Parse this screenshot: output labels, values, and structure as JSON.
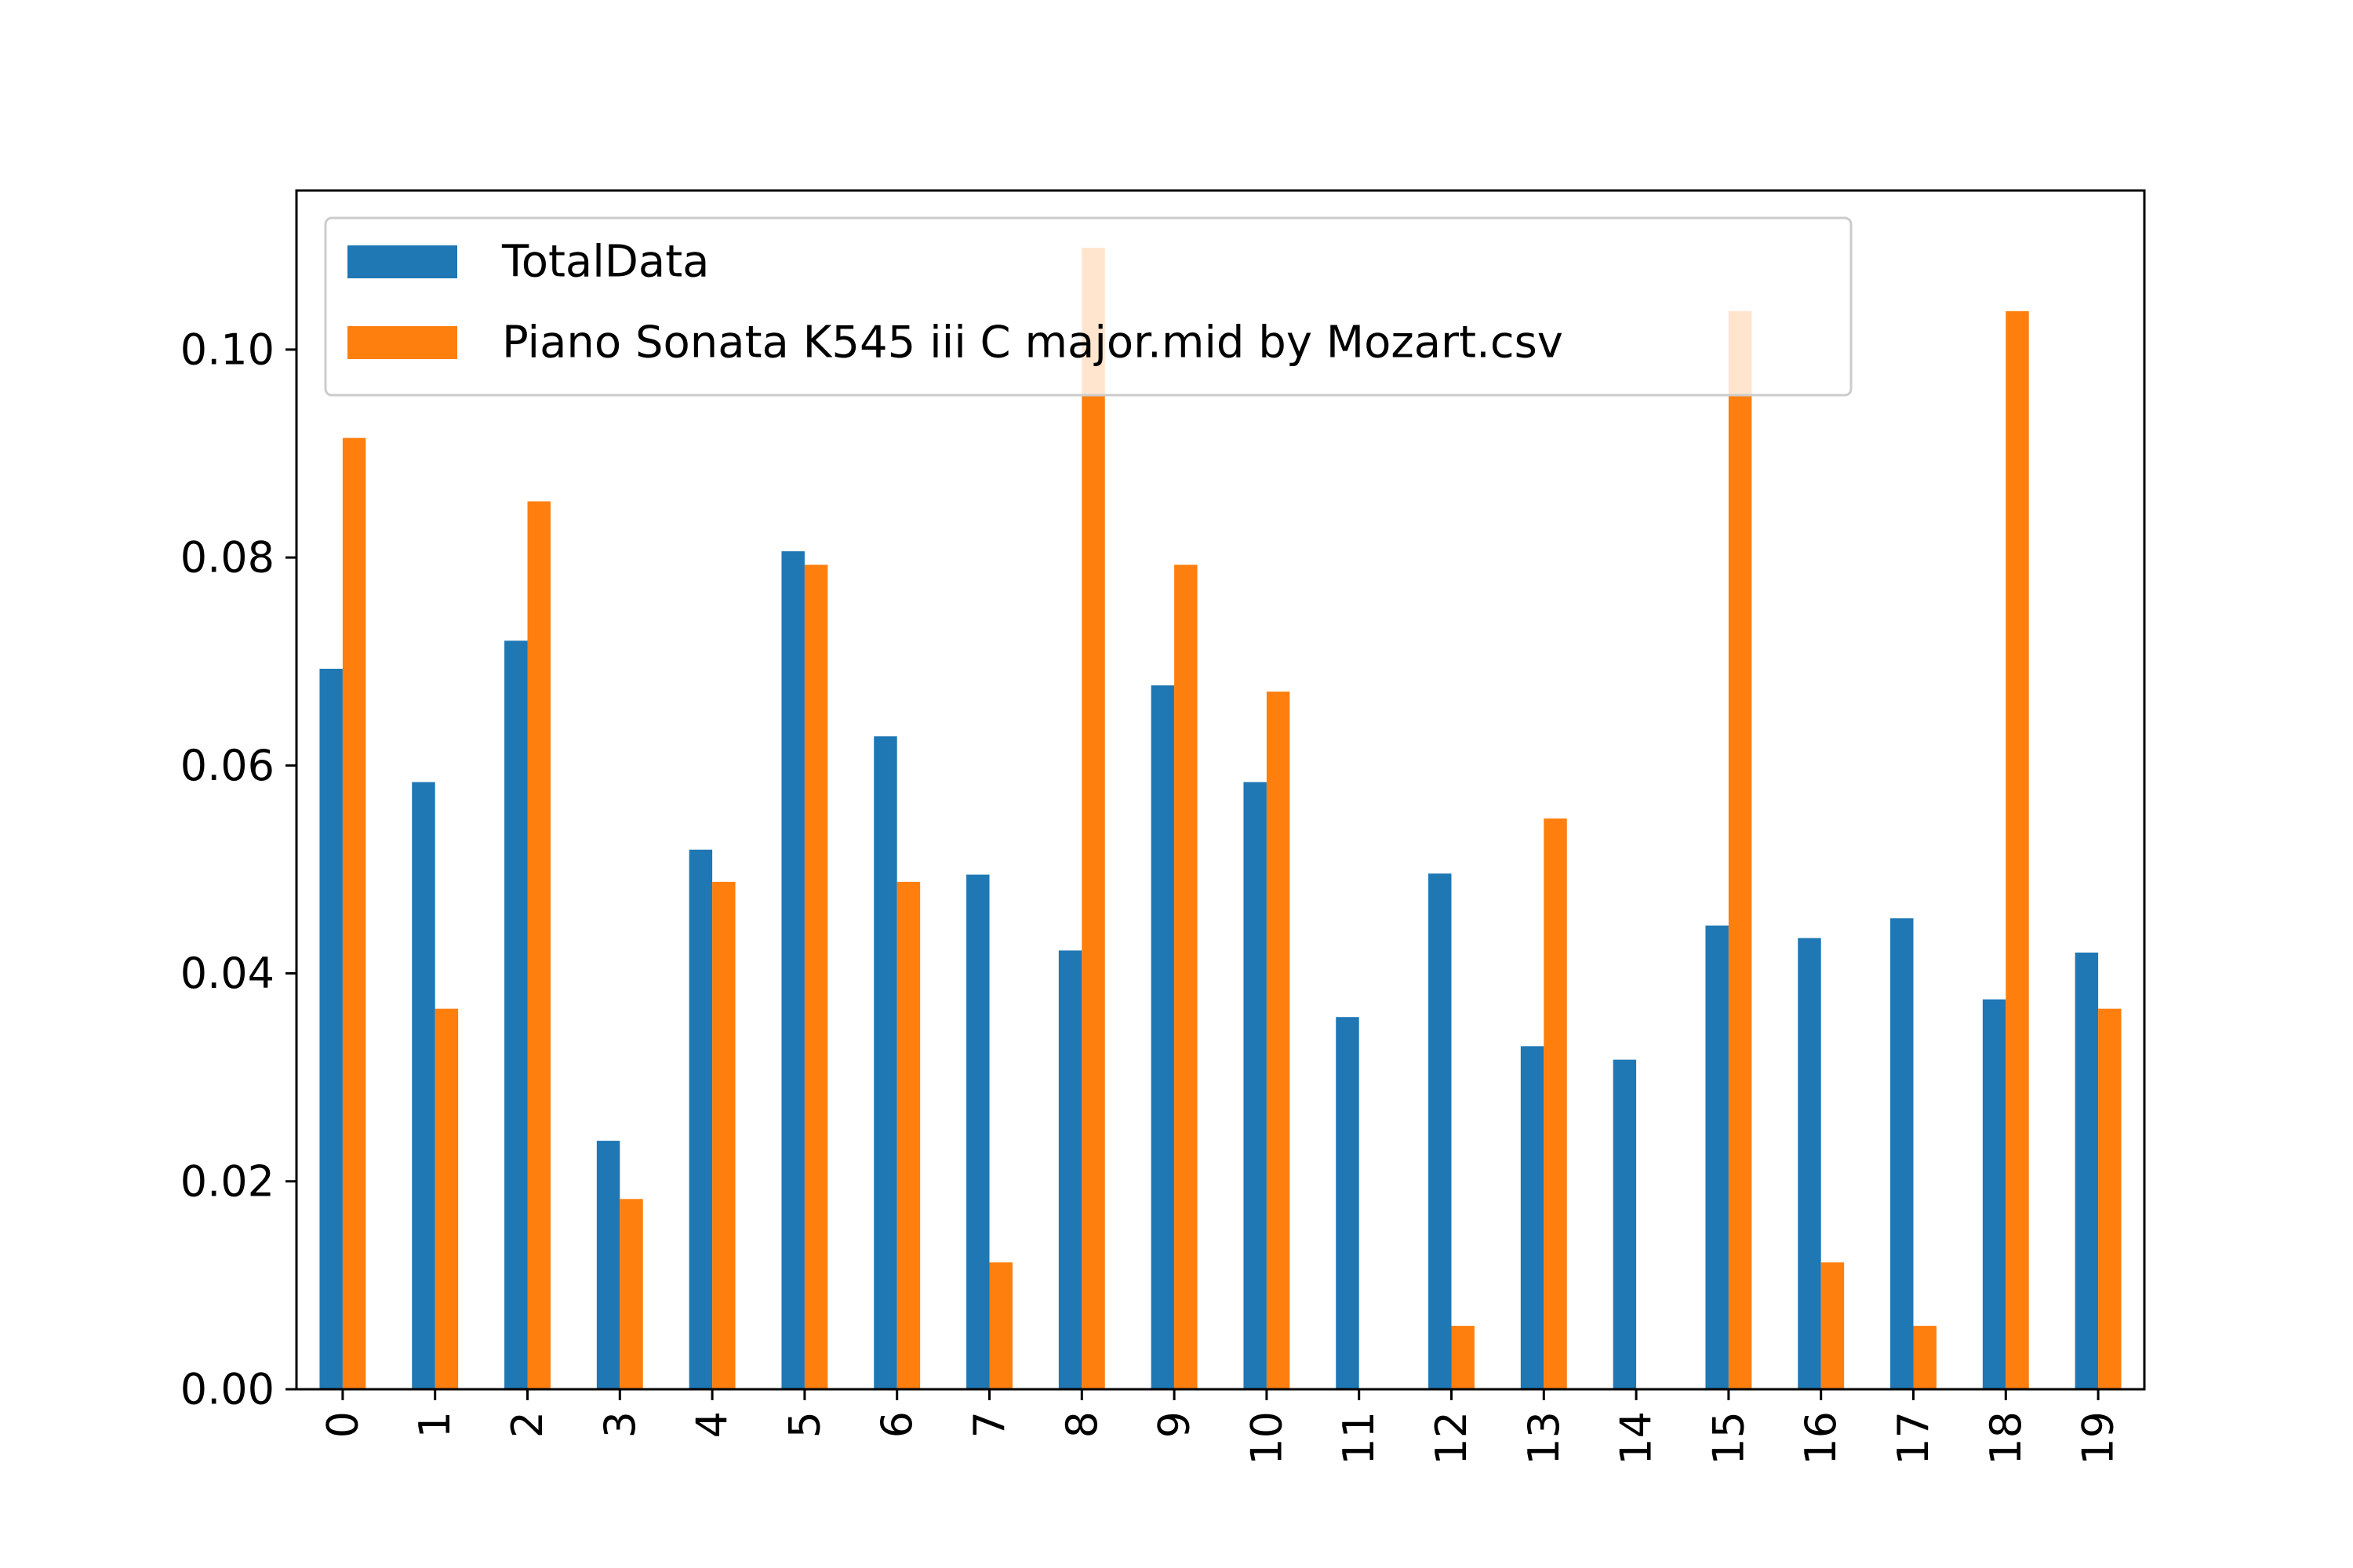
{
  "chart_data": {
    "type": "bar",
    "categories": [
      "0",
      "1",
      "2",
      "3",
      "4",
      "5",
      "6",
      "7",
      "8",
      "9",
      "10",
      "11",
      "12",
      "13",
      "14",
      "15",
      "16",
      "17",
      "18",
      "19"
    ],
    "series": [
      {
        "name": "TotalData",
        "color": "#1f77b4",
        "values": [
          0.0693,
          0.0584,
          0.072,
          0.0239,
          0.0519,
          0.0806,
          0.0628,
          0.0495,
          0.0422,
          0.0677,
          0.0584,
          0.0358,
          0.0496,
          0.033,
          0.0317,
          0.0446,
          0.0434,
          0.0453,
          0.0375,
          0.042
        ]
      },
      {
        "name": "Piano Sonata K545 iii C major.mid by Mozart.csv",
        "color": "#ff7f0e",
        "values": [
          0.0915,
          0.0366,
          0.0854,
          0.0183,
          0.0488,
          0.0793,
          0.0488,
          0.0122,
          0.1098,
          0.0793,
          0.0671,
          0.0,
          0.0061,
          0.0549,
          0.0,
          0.1037,
          0.0122,
          0.0061,
          0.1037,
          0.0366
        ]
      }
    ],
    "yticks": [
      "0.00",
      "0.02",
      "0.04",
      "0.06",
      "0.08",
      "0.10"
    ],
    "ylim": [
      0,
      0.1153
    ],
    "title": "",
    "xlabel": "",
    "ylabel": "",
    "legend": "upper-left",
    "grid": false
  }
}
